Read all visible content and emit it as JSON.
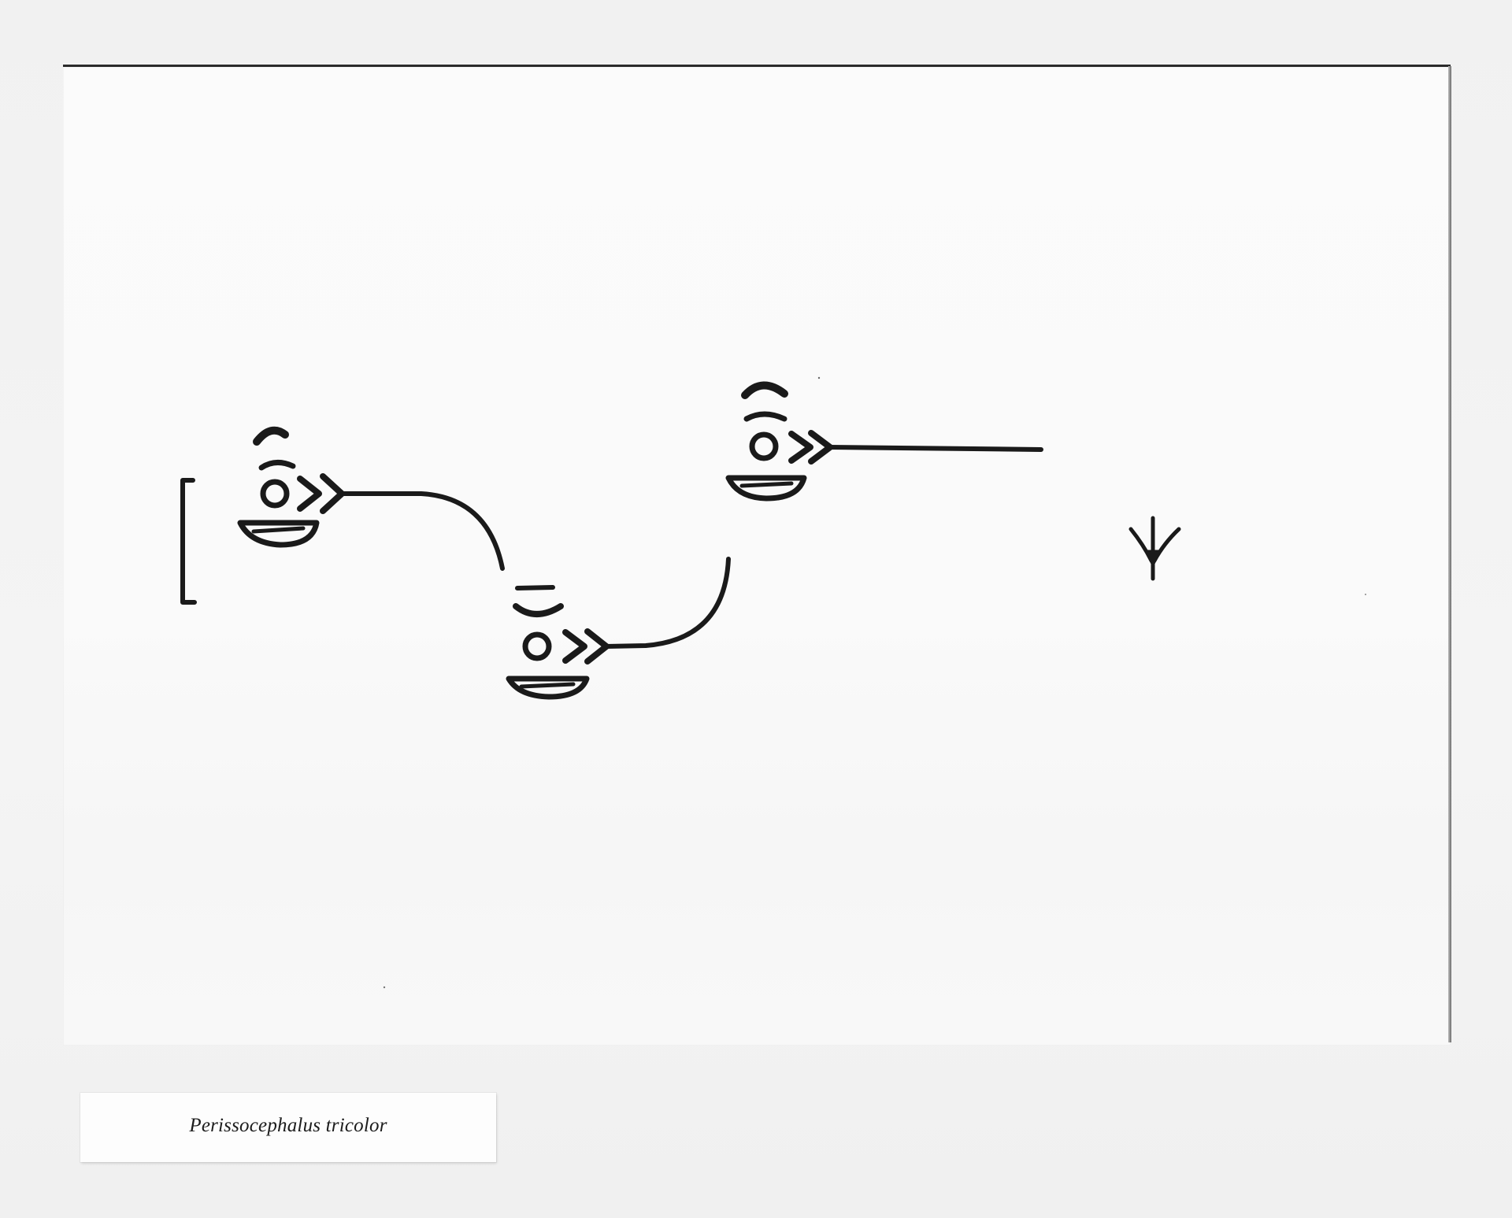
{
  "artwork": {
    "ink_color": "#1a1a1a",
    "board_color": "#fafafa",
    "wall_color": "#f3f3f3"
  },
  "label": {
    "species": "Perissocephalus tricolor"
  }
}
